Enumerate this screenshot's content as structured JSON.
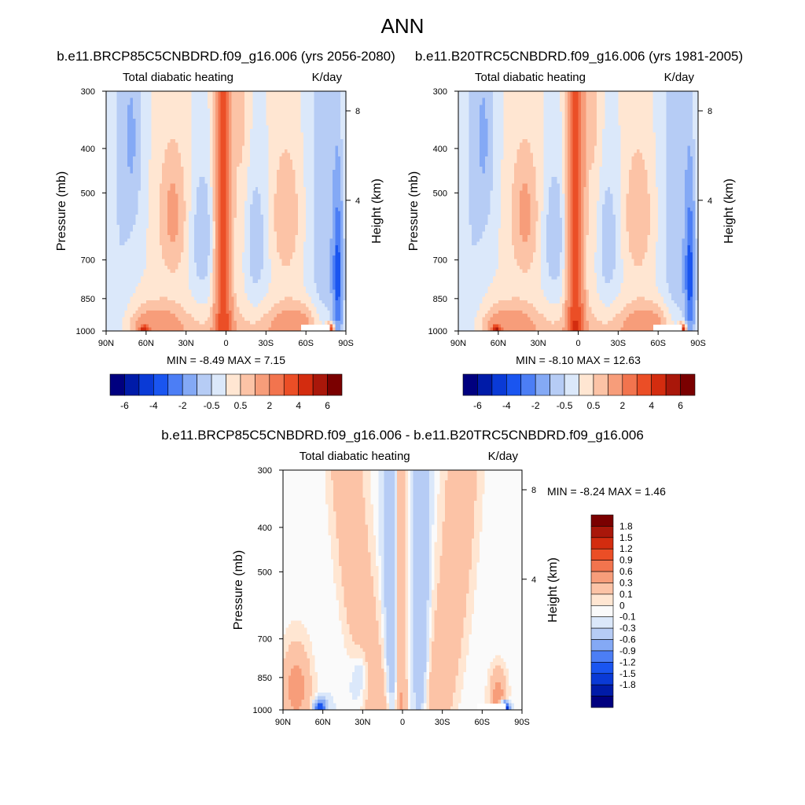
{
  "page_title": "ANN",
  "palettes": {
    "panel": [
      "#00007f",
      "#001ba8",
      "#0a3ad6",
      "#1a55f0",
      "#4c7ef5",
      "#84a9f5",
      "#b6ccf5",
      "#dbe8fa",
      "#ffe6d2",
      "#fcc3a6",
      "#f79d7a",
      "#f2744e",
      "#eb4e26",
      "#d32c0f",
      "#a9170a",
      "#7a0000"
    ],
    "diff": [
      "#00007f",
      "#001ba8",
      "#0a3ad6",
      "#1a55f0",
      "#4c7ef5",
      "#84a9f5",
      "#b6ccf5",
      "#dbe8fa",
      "#fafafa",
      "#ffe6d2",
      "#fcc3a6",
      "#f79d7a",
      "#f2744e",
      "#eb4e26",
      "#d32c0f",
      "#a9170a",
      "#7a0000"
    ]
  },
  "chart_data": [
    {
      "type": "heatmap",
      "id": "panel_left",
      "title": "b.e11.BRCP85C5CNBDRD.f09_g16.006 (yrs 2056-2080)",
      "left_label": "Total diabatic heating",
      "right_label": "K/day",
      "ylabel": "Pressure (mb)",
      "ylabel_right": "Height (km)",
      "x_ticks": [
        "90N",
        "60N",
        "30N",
        "0",
        "30S",
        "60S",
        "90S"
      ],
      "y_ticks": [
        "300",
        "400",
        "500",
        "700",
        "850",
        "1000"
      ],
      "y_ticks_right": [
        "8",
        "4"
      ],
      "xlim": [
        90,
        -90
      ],
      "ylim": [
        1000,
        300
      ],
      "min_max_text": "MIN =  -8.49  MAX =  7.15",
      "colorbar_labels": [
        "-6",
        "-4",
        "-2",
        "-0.5",
        "0.5",
        "2",
        "4",
        "6"
      ]
    },
    {
      "type": "heatmap",
      "id": "panel_right",
      "title": "b.e11.B20TRC5CNBDRD.f09_g16.006 (yrs 1981-2005)",
      "left_label": "Total diabatic heating",
      "right_label": "K/day",
      "ylabel": "Pressure (mb)",
      "ylabel_right": "Height (km)",
      "x_ticks": [
        "90N",
        "60N",
        "30N",
        "0",
        "30S",
        "60S",
        "90S"
      ],
      "y_ticks": [
        "300",
        "400",
        "500",
        "700",
        "850",
        "1000"
      ],
      "y_ticks_right": [
        "8",
        "4"
      ],
      "xlim": [
        90,
        -90
      ],
      "ylim": [
        1000,
        300
      ],
      "min_max_text": "MIN =  -8.10  MAX =  12.63",
      "colorbar_labels": [
        "-6",
        "-4",
        "-2",
        "-0.5",
        "0.5",
        "2",
        "4",
        "6"
      ]
    },
    {
      "type": "heatmap",
      "id": "panel_diff",
      "title": "b.e11.BRCP85C5CNBDRD.f09_g16.006 - b.e11.B20TRC5CNBDRD.f09_g16.006",
      "left_label": "Total diabatic heating",
      "right_label": "K/day",
      "ylabel": "Pressure (mb)",
      "ylabel_right": "Height (km)",
      "x_ticks": [
        "90N",
        "60N",
        "30N",
        "0",
        "30S",
        "60S",
        "90S"
      ],
      "y_ticks": [
        "300",
        "400",
        "500",
        "700",
        "850",
        "1000"
      ],
      "y_ticks_right": [
        "8",
        "4"
      ],
      "xlim": [
        90,
        -90
      ],
      "ylim": [
        1000,
        300
      ],
      "min_max_text": "MIN =  -8.24  MAX =   1.46",
      "colorbar_labels": [
        "1.8",
        "1.5",
        "1.2",
        "0.9",
        "0.6",
        "0.3",
        "0.1",
        "0",
        "-0.1",
        "-0.3",
        "-0.6",
        "-0.9",
        "-1.2",
        "-1.5",
        "-1.8"
      ]
    }
  ]
}
